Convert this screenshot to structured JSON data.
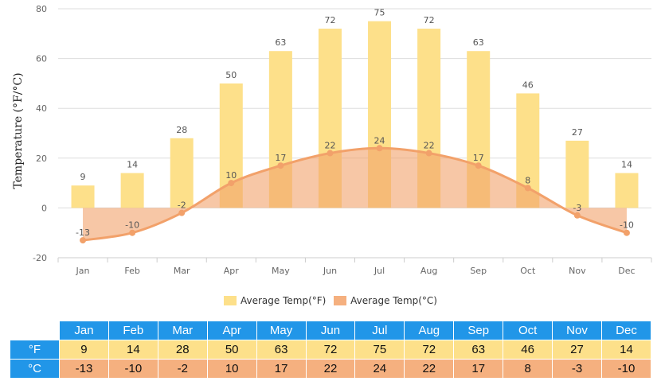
{
  "chart_data": {
    "type": "bar+line",
    "categories": [
      "Jan",
      "Feb",
      "Mar",
      "Apr",
      "May",
      "Jun",
      "Jul",
      "Aug",
      "Sep",
      "Oct",
      "Nov",
      "Dec"
    ],
    "series": [
      {
        "name": "Average Temp(°F)",
        "type": "bar",
        "color": "#fde08a",
        "values": [
          9,
          14,
          28,
          50,
          63,
          72,
          75,
          72,
          63,
          46,
          27,
          14
        ]
      },
      {
        "name": "Average Temp(°C)",
        "type": "area-line",
        "color": "#f2a16a",
        "values": [
          -13,
          -10,
          -2,
          10,
          17,
          22,
          24,
          22,
          17,
          8,
          -3,
          -10
        ]
      }
    ],
    "ylabel": "Temperature (°F/°C)",
    "xlabel": "",
    "ylim": [
      -20,
      80
    ],
    "yticks": [
      -20,
      0,
      20,
      40,
      60,
      80
    ],
    "grid": true,
    "legend_position": "bottom-center"
  },
  "legend": {
    "items": [
      {
        "label": "Average Temp(°F)",
        "color": "#fde08a"
      },
      {
        "label": "Average Temp(°C)",
        "color": "#f5b07f"
      }
    ]
  },
  "table": {
    "headers": [
      "Jan",
      "Feb",
      "Mar",
      "Apr",
      "May",
      "Jun",
      "Jul",
      "Aug",
      "Sep",
      "Oct",
      "Nov",
      "Dec"
    ],
    "row_f": {
      "label": "°F",
      "values": [
        "9",
        "14",
        "28",
        "50",
        "63",
        "72",
        "75",
        "72",
        "63",
        "46",
        "27",
        "14"
      ]
    },
    "row_c": {
      "label": "°C",
      "values": [
        "-13",
        "-10",
        "-2",
        "10",
        "17",
        "22",
        "24",
        "22",
        "17",
        "8",
        "-3",
        "-10"
      ]
    }
  }
}
